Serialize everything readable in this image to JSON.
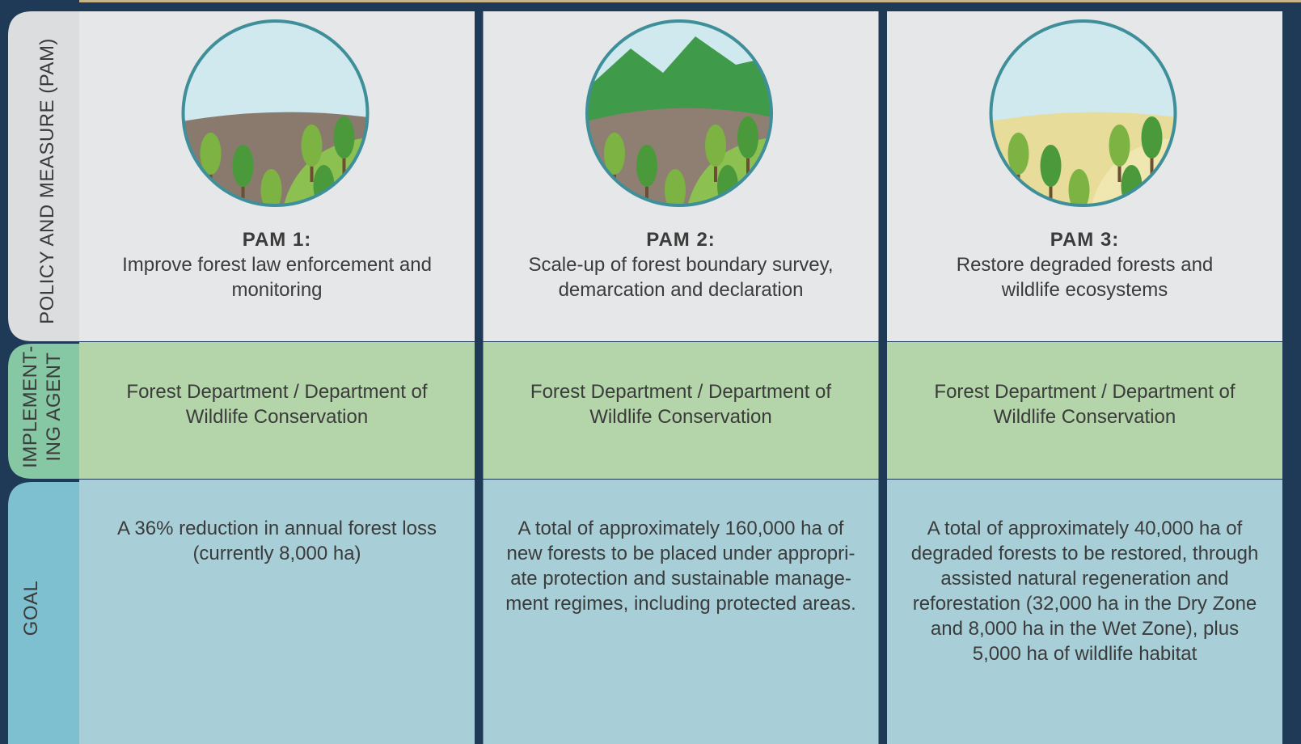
{
  "row_labels": {
    "pam": "POLICY AND MEASURE (PAM)",
    "agent": [
      "IMPLEMENT-",
      "ING AGENT"
    ],
    "goal": "GOAL"
  },
  "columns": [
    {
      "title": "PAM 1:",
      "text": [
        "Improve forest law enforcement and",
        "monitoring"
      ],
      "agent": [
        "Forest Department / Department of",
        "Wildlife Conservation"
      ],
      "goal": [
        "A 36% reduction in annual forest loss",
        "(currently 8,000 ha)"
      ]
    },
    {
      "title": "PAM 2:",
      "text": [
        "Scale-up of forest boundary survey,",
        "demarcation and declaration"
      ],
      "agent": [
        "Forest Department / Department of",
        "Wildlife Conservation"
      ],
      "goal": [
        "A total of approximately 160,000 ha of",
        "new forests to be placed under appropri-",
        "ate protection and sustainable manage-",
        "ment regimes, including protected areas."
      ]
    },
    {
      "title": "PAM 3:",
      "text": [
        "Restore degraded forests and",
        "wildlife ecosystems"
      ],
      "agent": [
        "Forest Department / Department of",
        "Wildlife Conservation"
      ],
      "goal": [
        "A total of approximately 40,000 ha of",
        "degraded forests to be restored, through",
        "assisted natural regeneration and",
        "reforestation (32,000 ha in the Dry Zone",
        "and 8,000 ha in the Wet Zone), plus",
        "5,000 ha of wildlife habitat"
      ]
    }
  ]
}
